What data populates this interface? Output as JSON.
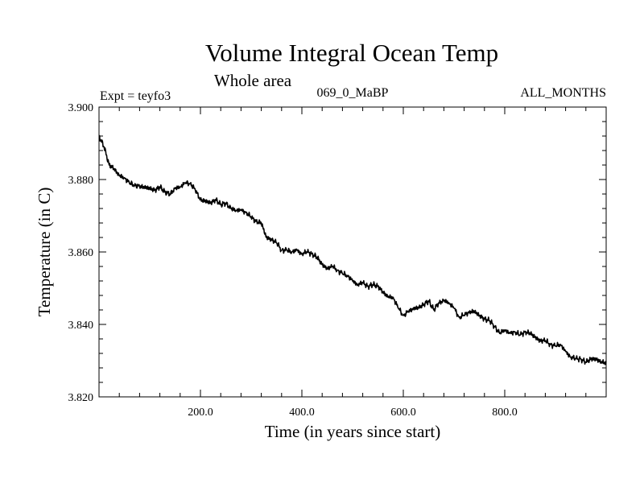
{
  "chart_data": {
    "type": "line",
    "title": "Volume Integral Ocean Temp",
    "subtitle": "Whole area",
    "header_left": "Expt = teyfo3",
    "header_center": "069_0_MaBP",
    "header_right": "ALL_MONTHS",
    "xlabel": "Time (in years since start)",
    "ylabel": "Temperature (in C)",
    "xlim": [
      0,
      1000
    ],
    "ylim": [
      3.82,
      3.9
    ],
    "xticks": [
      200,
      400,
      600,
      800
    ],
    "xtick_labels": [
      "200.0",
      "400.0",
      "600.0",
      "800.0"
    ],
    "yticks": [
      3.82,
      3.84,
      3.86,
      3.88,
      3.9
    ],
    "ytick_labels": [
      "3.820",
      "3.840",
      "3.860",
      "3.880",
      "3.900"
    ],
    "series": [
      {
        "name": "Volume Integral Ocean Temp",
        "x": [
          0,
          10,
          20,
          30,
          40,
          50,
          60,
          70,
          80,
          90,
          100,
          110,
          120,
          130,
          140,
          150,
          160,
          170,
          180,
          190,
          200,
          210,
          220,
          230,
          240,
          250,
          260,
          270,
          280,
          290,
          300,
          310,
          320,
          330,
          340,
          350,
          360,
          370,
          380,
          390,
          400,
          410,
          420,
          430,
          440,
          450,
          460,
          470,
          480,
          490,
          500,
          510,
          520,
          530,
          540,
          550,
          560,
          570,
          580,
          590,
          600,
          610,
          620,
          630,
          640,
          650,
          660,
          670,
          680,
          690,
          700,
          710,
          720,
          730,
          740,
          750,
          760,
          770,
          780,
          790,
          800,
          810,
          820,
          830,
          840,
          850,
          860,
          870,
          880,
          890,
          900,
          910,
          920,
          930,
          940,
          950,
          960,
          970,
          980,
          990,
          1000
        ],
        "values": [
          3.892,
          3.889,
          3.884,
          3.883,
          3.881,
          3.8805,
          3.879,
          3.8785,
          3.878,
          3.878,
          3.8775,
          3.877,
          3.878,
          3.8765,
          3.876,
          3.8775,
          3.878,
          3.879,
          3.879,
          3.877,
          3.8745,
          3.874,
          3.8735,
          3.8745,
          3.873,
          3.8735,
          3.872,
          3.8715,
          3.8715,
          3.871,
          3.8695,
          3.8685,
          3.868,
          3.864,
          3.8635,
          3.8625,
          3.8605,
          3.8605,
          3.86,
          3.8605,
          3.8595,
          3.86,
          3.8595,
          3.8585,
          3.8565,
          3.8555,
          3.856,
          3.855,
          3.854,
          3.8535,
          3.852,
          3.851,
          3.8515,
          3.8505,
          3.851,
          3.8505,
          3.849,
          3.8475,
          3.8475,
          3.8445,
          3.8425,
          3.8435,
          3.8445,
          3.8445,
          3.8455,
          3.8465,
          3.844,
          3.846,
          3.8465,
          3.846,
          3.8445,
          3.842,
          3.8425,
          3.8435,
          3.8435,
          3.8425,
          3.8415,
          3.841,
          3.8395,
          3.8375,
          3.8385,
          3.8375,
          3.838,
          3.837,
          3.838,
          3.8375,
          3.8365,
          3.8355,
          3.8355,
          3.8345,
          3.834,
          3.8345,
          3.8325,
          3.831,
          3.8305,
          3.8305,
          3.8295,
          3.8305,
          3.8305,
          3.8295,
          3.8295
        ]
      }
    ]
  }
}
